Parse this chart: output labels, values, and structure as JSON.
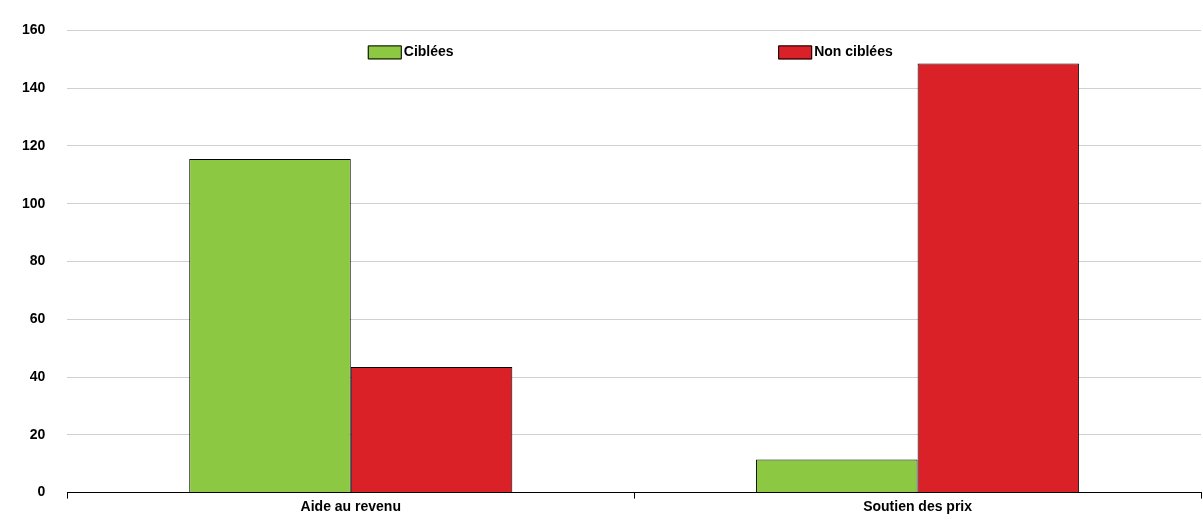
{
  "chart_data": {
    "type": "bar",
    "categories": [
      "Aide au revenu",
      "Soutien des prix"
    ],
    "series": [
      {
        "name": "Ciblées",
        "color": "#8cc841",
        "values": [
          115.5,
          11.5
        ]
      },
      {
        "name": "Non ciblées",
        "color": "#da2128",
        "values": [
          43.5,
          148.5
        ]
      }
    ],
    "ylim": [
      0,
      160
    ],
    "yticks": [
      0,
      20,
      40,
      60,
      80,
      100,
      120,
      140,
      160
    ],
    "grid": "y",
    "legend": "top"
  }
}
